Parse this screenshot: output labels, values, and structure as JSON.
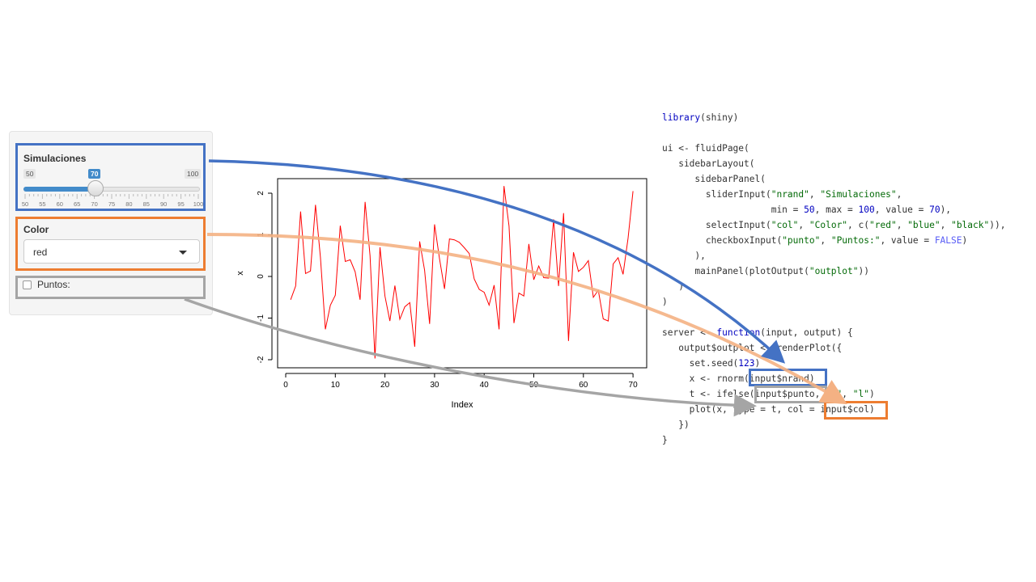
{
  "sidebar": {
    "slider": {
      "label": "Simulaciones",
      "min": "50",
      "max": "100",
      "value": "70",
      "grid_labels": [
        "50",
        "55",
        "60",
        "65",
        "70",
        "75",
        "80",
        "85",
        "90",
        "95",
        "100"
      ]
    },
    "select": {
      "label": "Color",
      "value": "red"
    },
    "checkbox": {
      "label": "Puntos:",
      "checked": false
    }
  },
  "plot": {
    "ylabel": "x",
    "xlabel": "Index",
    "yticks": [
      "-2",
      "-1",
      "0",
      "1",
      "2"
    ],
    "xticks": [
      "0",
      "10",
      "20",
      "30",
      "40",
      "50",
      "60",
      "70"
    ],
    "line_color": "#ff0000"
  },
  "chart_data": {
    "type": "line",
    "x": [
      1,
      2,
      3,
      4,
      5,
      6,
      7,
      8,
      9,
      10,
      11,
      12,
      13,
      14,
      15,
      16,
      17,
      18,
      19,
      20,
      21,
      22,
      23,
      24,
      25,
      26,
      27,
      28,
      29,
      30,
      31,
      32,
      33,
      34,
      35,
      36,
      37,
      38,
      39,
      40,
      41,
      42,
      43,
      44,
      45,
      46,
      47,
      48,
      49,
      50,
      51,
      52,
      53,
      54,
      55,
      56,
      57,
      58,
      59,
      60,
      61,
      62,
      63,
      64,
      65,
      66,
      67,
      68,
      69,
      70
    ],
    "y": [
      -0.56,
      -0.23,
      1.56,
      0.07,
      0.13,
      1.72,
      0.46,
      -1.27,
      -0.69,
      -0.45,
      1.22,
      0.36,
      0.4,
      0.11,
      -0.56,
      1.79,
      0.5,
      -1.97,
      0.7,
      -0.47,
      -1.07,
      -0.22,
      -1.03,
      -0.73,
      -0.63,
      -1.69,
      0.84,
      0.15,
      -1.14,
      1.25,
      0.43,
      -0.3,
      0.9,
      0.88,
      0.82,
      0.69,
      0.55,
      -0.06,
      -0.31,
      -0.38,
      -0.69,
      -0.21,
      -1.27,
      2.17,
      1.21,
      -1.12,
      -0.4,
      -0.47,
      0.78,
      -0.08,
      0.25,
      -0.03,
      -0.04,
      1.37,
      -0.23,
      1.52,
      -1.55,
      0.58,
      0.12,
      0.22,
      0.38,
      -0.5,
      -0.33,
      -1.02,
      -1.07,
      0.3,
      0.45,
      0.05,
      0.92,
      2.05
    ],
    "xlabel": "Index",
    "ylabel": "x",
    "xlim": [
      0,
      72
    ],
    "ylim": [
      -2.15,
      2.25
    ],
    "color": "#ff0000"
  },
  "code": {
    "lines": [
      [
        [
          "kw",
          "library"
        ],
        [
          "p",
          "(shiny)"
        ]
      ],
      [
        [
          "p",
          ""
        ]
      ],
      [
        [
          "p",
          "ui <- fluidPage("
        ]
      ],
      [
        [
          "p",
          "   sidebarLayout("
        ]
      ],
      [
        [
          "p",
          "      sidebarPanel("
        ]
      ],
      [
        [
          "p",
          "        sliderInput("
        ],
        [
          "str",
          "\"nrand\""
        ],
        [
          "p",
          ", "
        ],
        [
          "str",
          "\"Simulaciones\""
        ],
        [
          "p",
          ","
        ]
      ],
      [
        [
          "p",
          "                    min = "
        ],
        [
          "num",
          "50"
        ],
        [
          "p",
          ", max = "
        ],
        [
          "num",
          "100"
        ],
        [
          "p",
          ", value = "
        ],
        [
          "num",
          "70"
        ],
        [
          "p",
          "),"
        ]
      ],
      [
        [
          "p",
          "        selectInput("
        ],
        [
          "str",
          "\"col\""
        ],
        [
          "p",
          ", "
        ],
        [
          "str",
          "\"Color\""
        ],
        [
          "p",
          ", c("
        ],
        [
          "str",
          "\"red\""
        ],
        [
          "p",
          ", "
        ],
        [
          "str",
          "\"blue\""
        ],
        [
          "p",
          ", "
        ],
        [
          "str",
          "\"black\""
        ],
        [
          "p",
          ")),"
        ]
      ],
      [
        [
          "p",
          "        checkboxInput("
        ],
        [
          "str",
          "\"punto\""
        ],
        [
          "p",
          ", "
        ],
        [
          "str",
          "\"Puntos:\""
        ],
        [
          "p",
          ", value = "
        ],
        [
          "fls",
          "FALSE"
        ],
        [
          "p",
          ")"
        ]
      ],
      [
        [
          "p",
          "      ),"
        ]
      ],
      [
        [
          "p",
          "      mainPanel(plotOutput("
        ],
        [
          "str",
          "\"outplot\""
        ],
        [
          "p",
          "))"
        ]
      ],
      [
        [
          "p",
          "   )"
        ]
      ],
      [
        [
          "p",
          ")"
        ]
      ],
      [
        [
          "p",
          ""
        ]
      ],
      [
        [
          "p",
          "server <- "
        ],
        [
          "kw",
          "function"
        ],
        [
          "p",
          "(input, output) {"
        ]
      ],
      [
        [
          "p",
          "   output$outplot <- renderPlot({"
        ]
      ],
      [
        [
          "p",
          "     set.seed("
        ],
        [
          "num",
          "123"
        ],
        [
          "p",
          ")"
        ]
      ],
      [
        [
          "p",
          "     x <- rnorm(input$nrand)"
        ]
      ],
      [
        [
          "p",
          "     t <- ifelse(input$punto, "
        ],
        [
          "str",
          "\"b\""
        ],
        [
          "p",
          ", "
        ],
        [
          "str",
          "\"l\""
        ],
        [
          "p",
          ")"
        ]
      ],
      [
        [
          "p",
          "     plot(x, type = t, col = input$col)"
        ]
      ],
      [
        [
          "p",
          "   })"
        ]
      ],
      [
        [
          "p",
          "}"
        ]
      ]
    ]
  },
  "colors": {
    "blue": "#4472c4",
    "orange": "#ed7d31",
    "light_orange": "#f4b183",
    "gray": "#a5a5a5"
  }
}
